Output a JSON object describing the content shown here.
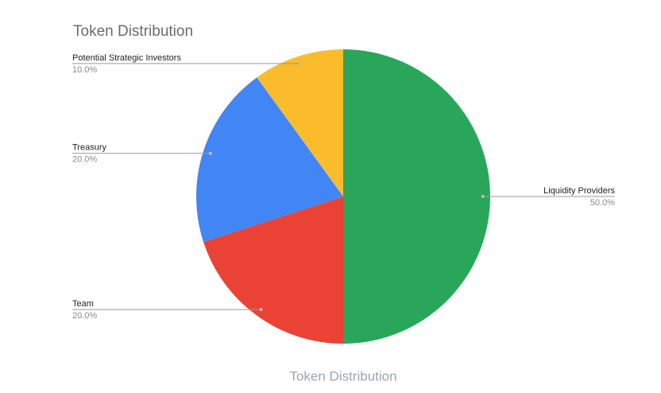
{
  "chart_data": {
    "type": "pie",
    "title": "Token Distribution",
    "xlabel": "Token Distribution",
    "categories": [
      "Liquidity Providers",
      "Team",
      "Treasury",
      "Potential Strategic Investors"
    ],
    "values": [
      50,
      20,
      20,
      10
    ],
    "value_labels": [
      "50.0%",
      "20.0%",
      "20.0%",
      "10.0%"
    ],
    "colors": [
      "#2aa65a",
      "#ea4335",
      "#4285f4",
      "#fbbc2c"
    ]
  }
}
